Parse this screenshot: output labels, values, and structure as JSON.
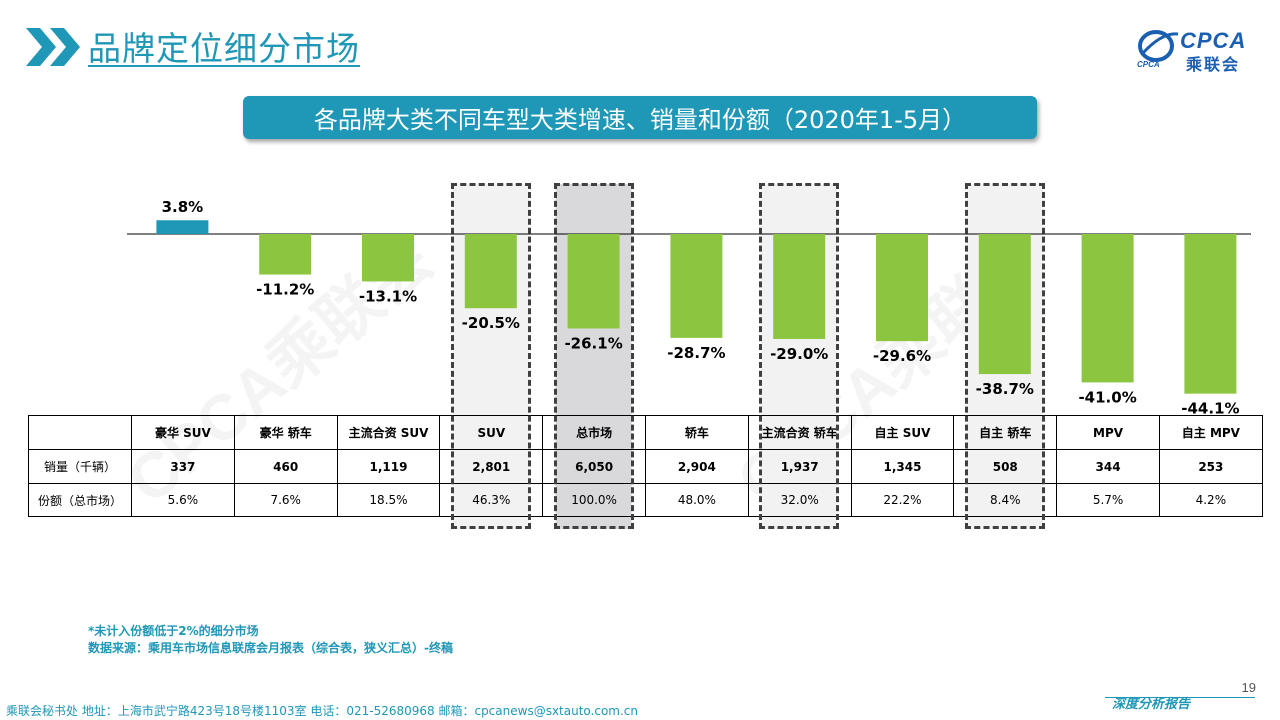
{
  "header": {
    "title": "品牌定位细分市场",
    "logo_text": "CPCA",
    "logo_cn": "乘联会",
    "logo_sub": "CPCA"
  },
  "banner": {
    "text": "各品牌大类不同车型大类增速、销量和份额（2020年1-5月）"
  },
  "watermark": "CPCA乘联会",
  "colors": {
    "accent": "#1f97b6",
    "positive_bar": "#1f97b6",
    "negative_bar": "#8cc540",
    "highlight_bg": "#f2f2f2",
    "total_bg": "#d9d9dc"
  },
  "chart_data": {
    "type": "bar",
    "categories": [
      "豪华 SUV",
      "豪华 轿车",
      "主流合资 SUV",
      "SUV",
      "总市场",
      "轿车",
      "主流合资 轿车",
      "自主 SUV",
      "自主 轿车",
      "MPV",
      "自主 MPV"
    ],
    "values": [
      3.8,
      -11.2,
      -13.1,
      -20.5,
      -26.1,
      -28.7,
      -29.0,
      -29.6,
      -38.7,
      -41.0,
      -44.1
    ],
    "value_labels": [
      "3.8%",
      "-11.2%",
      "-13.1%",
      "-20.5%",
      "-26.1%",
      "-28.7%",
      "-29.0%",
      "-29.6%",
      "-38.7%",
      "-41.0%",
      "-44.1%"
    ],
    "unit": "%",
    "highlighted": [
      "SUV",
      "总市场",
      "主流合资 轿车",
      "自主 轿车"
    ]
  },
  "table": {
    "header_row": [
      "",
      "豪华 SUV",
      "豪华 轿车",
      "主流合资 SUV",
      "SUV",
      "总市场",
      "轿车",
      "主流合资 轿车",
      "自主 SUV",
      "自主 轿车",
      "MPV",
      "自主 MPV"
    ],
    "rows": [
      {
        "label": "销量（千辆）",
        "values": [
          "337",
          "460",
          "1,119",
          "2,801",
          "6,050",
          "2,904",
          "1,937",
          "1,345",
          "508",
          "344",
          "253"
        ]
      },
      {
        "label": "份额（总市场）",
        "values": [
          "5.6%",
          "7.6%",
          "18.5%",
          "46.3%",
          "100.0%",
          "48.0%",
          "32.0%",
          "22.2%",
          "8.4%",
          "5.7%",
          "4.2%"
        ]
      }
    ]
  },
  "footnotes": {
    "note": "*未计入份额低于2%的细分市场",
    "source": "数据来源：乘用车市场信息联席会月报表（综合表，狭义汇总）-终稿"
  },
  "footer": {
    "contact": "乘联会秘书处   地址：上海市武宁路423号18号楼1103室   电话：021-52680968   邮箱：cpcanews@sxtauto.com.cn",
    "report_type": "深度分析报告",
    "page_number": "19"
  }
}
